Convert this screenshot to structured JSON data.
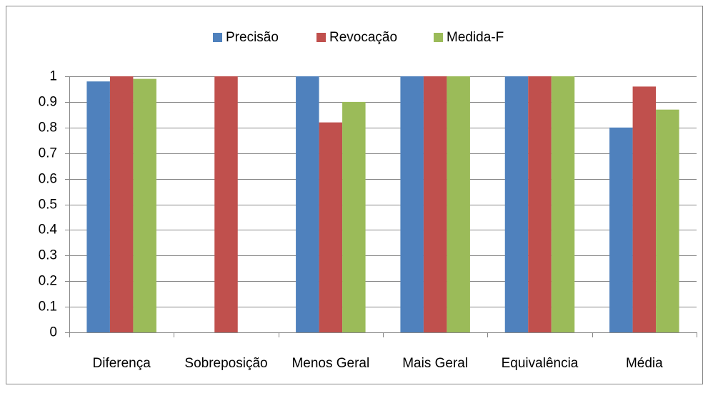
{
  "chart_data": {
    "type": "bar",
    "categories": [
      "Diferença",
      "Sobreposição",
      "Menos Geral",
      "Mais Geral",
      "Equivalência",
      "Média"
    ],
    "series": [
      {
        "name": "Precisão",
        "color": "#4f81bd",
        "values": [
          0.98,
          0,
          1,
          1,
          1,
          0.8
        ]
      },
      {
        "name": "Revocação",
        "color": "#c0504d",
        "values": [
          1,
          1,
          0.82,
          1,
          1,
          0.96
        ]
      },
      {
        "name": "Medida-F",
        "color": "#9bbb59",
        "values": [
          0.99,
          0,
          0.9,
          1,
          1,
          0.87
        ]
      }
    ],
    "ylim": [
      0,
      1
    ],
    "yticks": [
      0,
      0.1,
      0.2,
      0.3,
      0.4,
      0.5,
      0.6,
      0.7,
      0.8,
      0.9,
      1
    ],
    "grid": true,
    "legend": "top"
  }
}
